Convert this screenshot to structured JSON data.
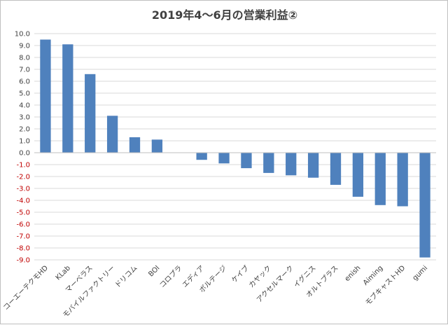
{
  "chart_data": {
    "type": "bar",
    "title": "2019年4～6月の営業利益②",
    "xlabel": "",
    "ylabel": "",
    "ylim": [
      -9.0,
      10.0
    ],
    "ytick_step": 1.0,
    "yticks": [
      "10.0",
      "9.0",
      "8.0",
      "7.0",
      "6.0",
      "5.0",
      "4.0",
      "3.0",
      "2.0",
      "1.0",
      "0.0",
      "-1.0",
      "-2.0",
      "-3.0",
      "-4.0",
      "-5.0",
      "-6.0",
      "-7.0",
      "-8.0",
      "-9.0"
    ],
    "grid": true,
    "legend": "none",
    "categories": [
      "コーエーテクモHD",
      "KLab",
      "マーベラス",
      "モバイルファクトリー",
      "ドリコム",
      "BOI",
      "コロプラ",
      "エディア",
      "ボルテージ",
      "ケイブ",
      "カヤック",
      "アクセルマーク",
      "イグニス",
      "オルトプラス",
      "enish",
      "Aiming",
      "モブキャストHD",
      "gumi"
    ],
    "values": [
      9.5,
      9.1,
      6.6,
      3.1,
      1.3,
      1.1,
      0.0,
      -0.6,
      -0.9,
      -1.3,
      -1.7,
      -1.9,
      -2.1,
      -2.7,
      -3.7,
      -4.4,
      -4.5,
      -8.8
    ],
    "colors": {
      "bar": "#4f81bd",
      "positive_tick": "#404040",
      "negative_tick": "#c00000"
    }
  }
}
